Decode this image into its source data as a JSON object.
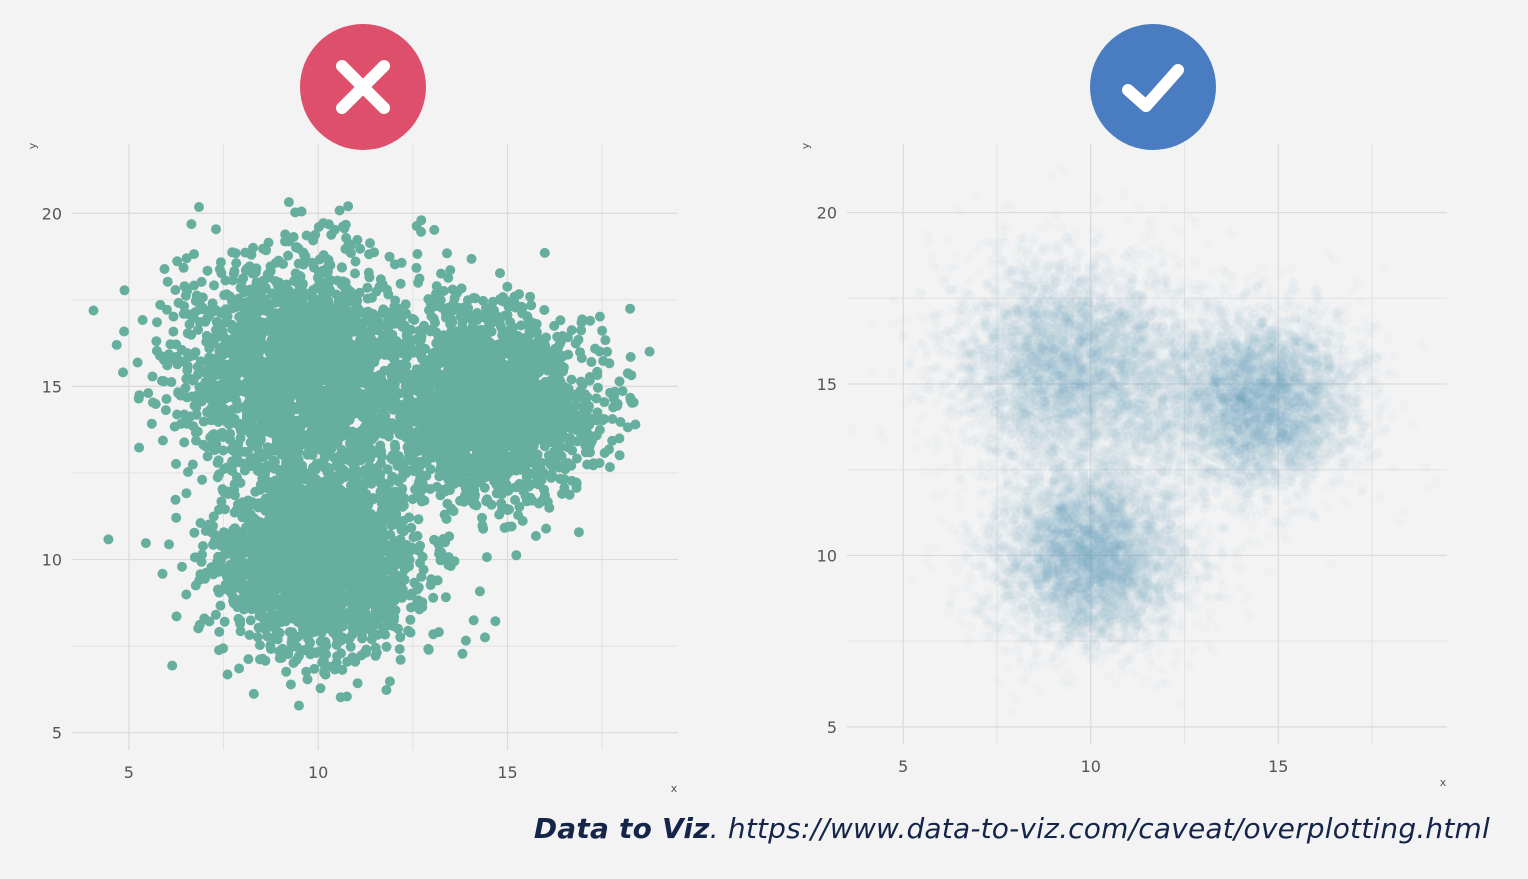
{
  "badges": {
    "bad": {
      "icon": "x-mark-icon",
      "color": "#de4f6b"
    },
    "good": {
      "icon": "checkmark-icon",
      "color": "#4a7cc1"
    }
  },
  "caption": {
    "source": "Data to Viz",
    "separator": ". ",
    "url": "https://www.data-to-viz.com/caveat/overplotting.html"
  },
  "chart_data": [
    {
      "type": "scatter",
      "title": "",
      "xlabel": "x",
      "ylabel": "y",
      "xlim": [
        3.5,
        19.5
      ],
      "ylim": [
        4.5,
        22
      ],
      "x_ticks": [
        "5",
        "10",
        "15"
      ],
      "y_ticks": [
        "5",
        "10",
        "15",
        "20"
      ],
      "grid": true,
      "point_color": "#66ae9e",
      "point_opacity": 1,
      "clusters": [
        {
          "center_x": 10,
          "center_y": 10,
          "spread": 1.3
        },
        {
          "center_x": 9.5,
          "center_y": 15.5,
          "spread": 1.6
        },
        {
          "center_x": 14.5,
          "center_y": 14.5,
          "spread": 1.3
        }
      ]
    },
    {
      "type": "scatter",
      "title": "",
      "xlabel": "x",
      "ylabel": "y",
      "xlim": [
        3.5,
        19.5
      ],
      "ylim": [
        4.5,
        22
      ],
      "x_ticks": [
        "5",
        "10",
        "15"
      ],
      "y_ticks": [
        "5",
        "10",
        "15",
        "20"
      ],
      "grid": true,
      "point_color": "#59a9b1",
      "point_opacity": 0.03,
      "clusters": [
        {
          "center_x": 10,
          "center_y": 10,
          "spread": 1.3
        },
        {
          "center_x": 9.5,
          "center_y": 15.5,
          "spread": 1.6
        },
        {
          "center_x": 14.5,
          "center_y": 14.5,
          "spread": 1.3
        }
      ]
    }
  ]
}
